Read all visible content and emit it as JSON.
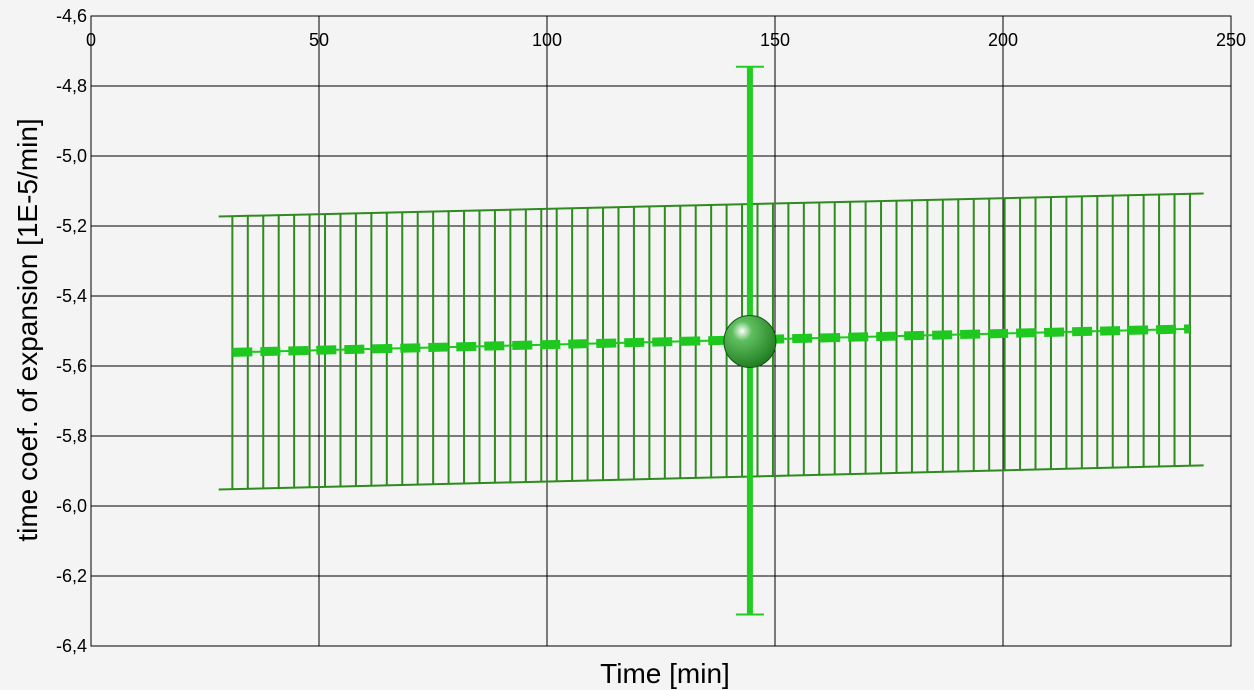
{
  "chart_data": {
    "type": "scatter",
    "title": "",
    "xlabel": "Time [min]",
    "ylabel": "time coef. of expansion [1E-5/min]",
    "xlim": [
      0,
      250
    ],
    "ylim": [
      -6.4,
      -4.6
    ],
    "x_ticks": [
      0,
      50,
      100,
      150,
      200,
      250
    ],
    "y_ticks": [
      -4.6,
      -4.8,
      -5.0,
      -5.2,
      -5.4,
      -5.6,
      -5.8,
      -6.0,
      -6.2,
      -6.4
    ],
    "x_tick_labels": [
      "0",
      "50",
      "100",
      "150",
      "200",
      "250"
    ],
    "y_tick_labels": [
      "-4,6",
      "-4,8",
      "-5,0",
      "-5,2",
      "-5,4",
      "-5,6",
      "-5,8",
      "-6,0",
      "-6,2",
      "-6,4"
    ],
    "grid": true,
    "legend": "none",
    "colors": {
      "band": "#2e8b1e",
      "fit_line": "#1ec81e",
      "point_errorbar": "#22cc22",
      "point": "#1e7a1e",
      "grid": "#000000",
      "background": "#f4f4f4"
    },
    "series": [
      {
        "kind": "confidence-band",
        "x_start": 31,
        "x_end": 241,
        "y_center_start": -5.561,
        "y_center_end": -5.494,
        "y_upper_start": -5.172,
        "y_upper_end": -5.108,
        "y_lower_start": -5.952,
        "y_lower_end": -5.885,
        "n_lines": 63
      },
      {
        "kind": "point",
        "x": 144.5,
        "y": -5.53,
        "y_err_high": -4.745,
        "y_err_low": -6.31
      }
    ]
  }
}
